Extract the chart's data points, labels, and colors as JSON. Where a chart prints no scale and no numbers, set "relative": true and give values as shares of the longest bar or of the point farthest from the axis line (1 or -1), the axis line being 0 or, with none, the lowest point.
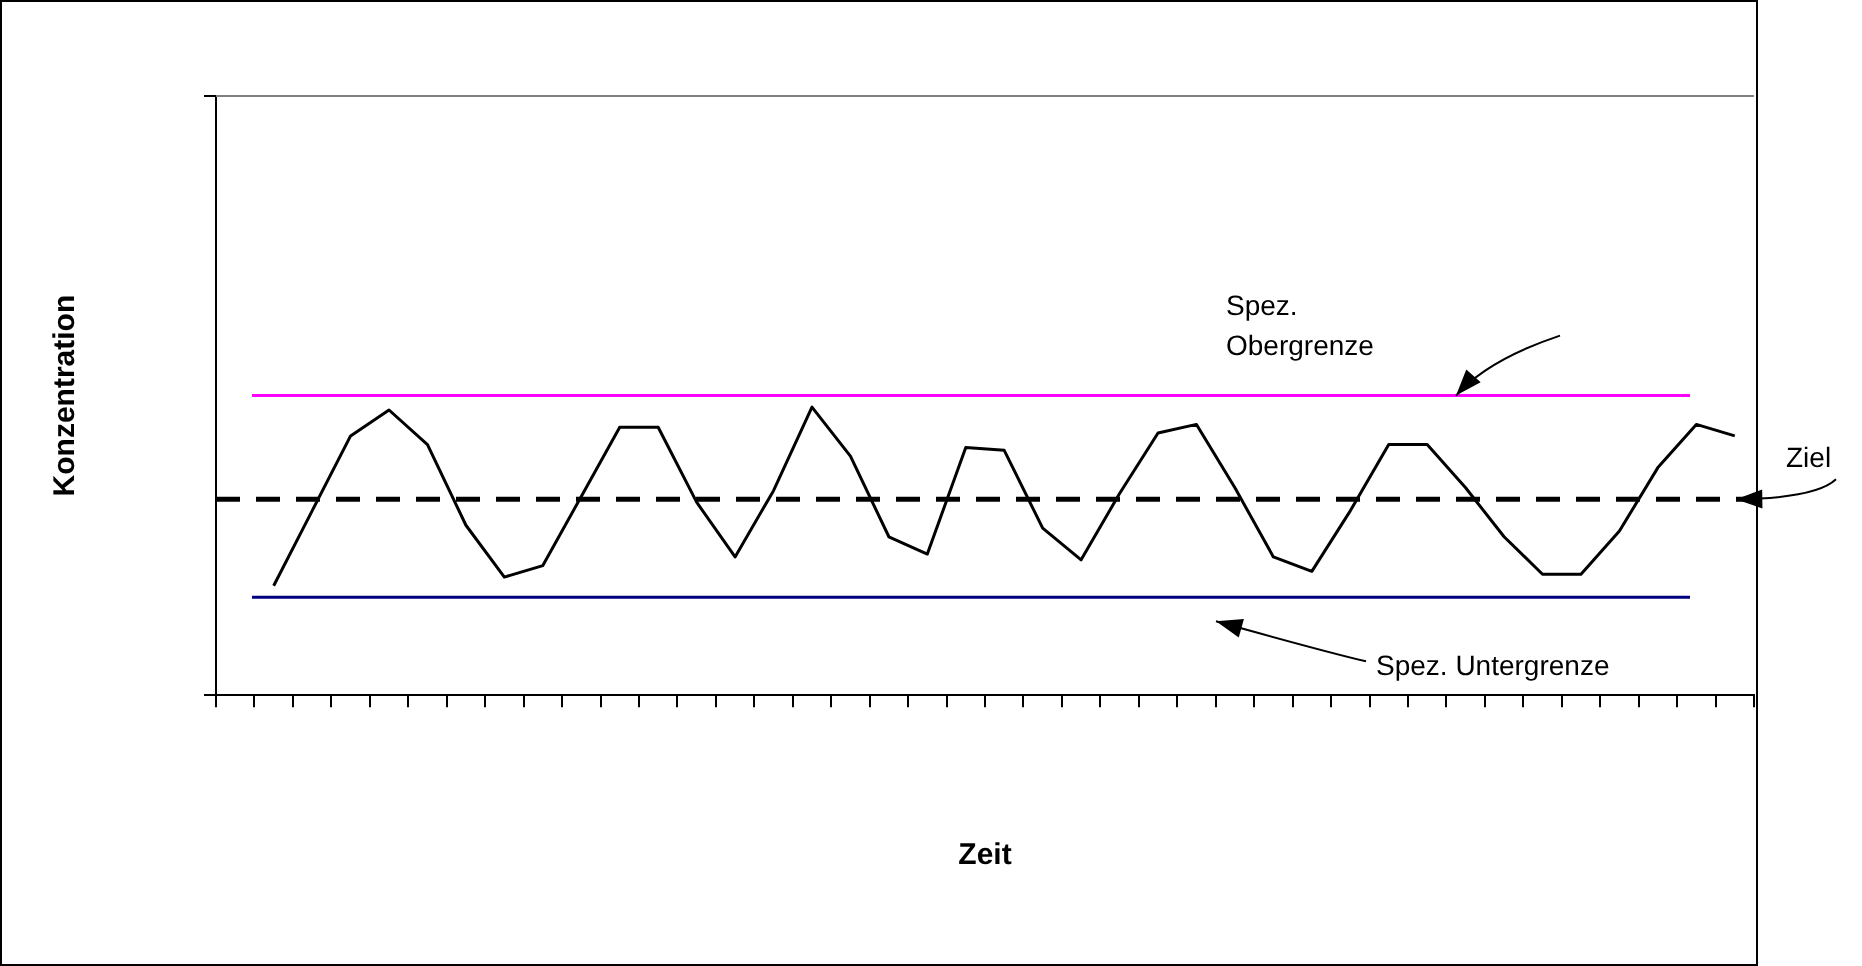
{
  "chart_data": {
    "type": "line",
    "xlabel": "Zeit",
    "ylabel": "Konzentration",
    "relative": true,
    "grid": false,
    "legend": false,
    "marker": "none",
    "line_style": "solid",
    "categories": [
      null,
      null,
      null,
      null,
      null,
      null,
      null,
      null,
      null,
      null,
      null,
      null,
      null,
      null,
      null,
      null,
      null,
      null,
      null,
      null,
      null,
      null,
      null,
      null,
      null,
      null,
      null,
      null,
      null,
      null,
      null,
      null,
      null,
      null,
      null,
      null,
      null,
      null,
      null,
      null
    ],
    "series": [
      {
        "color": "#000000",
        "values": [
          null,
          0.38,
          0.64,
          0.9,
          0.99,
          0.87,
          0.59,
          0.41,
          0.45,
          0.69,
          0.93,
          0.93,
          0.67,
          0.48,
          0.71,
          1,
          0.83,
          0.55,
          0.49,
          0.86,
          0.85,
          0.58,
          0.47,
          0.7,
          0.91,
          0.94,
          0.72,
          0.48,
          0.43,
          0.64,
          0.87,
          0.87,
          0.72,
          0.55,
          0.42,
          0.42,
          0.57,
          0.79,
          0.94,
          0.9
        ]
      }
    ],
    "ref_lines": [
      {
        "axis": "y",
        "value": 1.04,
        "label": "Spez. Obergrenze",
        "color": "#ff00ff",
        "line_style": "solid"
      },
      {
        "axis": "y",
        "value": 0.68,
        "label": "Ziel",
        "color": "#000000",
        "line_style": "dashed"
      },
      {
        "axis": "y",
        "value": 0.34,
        "label": "Spez. Untergrenze",
        "color": "#000080",
        "line_style": "solid"
      }
    ]
  }
}
